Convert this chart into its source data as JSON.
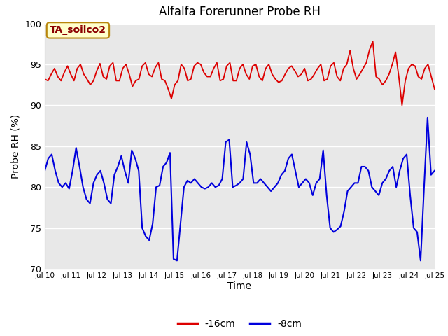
{
  "title": "Alfalfa Forerunner Probe RH",
  "ylabel": "Probe RH (%)",
  "xlabel": "Time",
  "annotation_text": "TA_soilco2",
  "ylim": [
    70,
    100
  ],
  "bg_color": "#e8e8e8",
  "fig_color": "#ffffff",
  "red_color": "#dd0000",
  "blue_color": "#0000dd",
  "legend_labels": [
    "-16cm",
    "-8cm"
  ],
  "xtick_labels": [
    "Jul 10",
    "Jul 11",
    "Jul 12",
    "Jul 13",
    "Jul 14",
    "Jul 15",
    "Jul 16",
    "Jul 17",
    "Jul 18",
    "Jul 19",
    "Jul 20",
    "Jul 21",
    "Jul 22",
    "Jul 23",
    "Jul 24",
    "Jul 25"
  ],
  "ytick_labels": [
    70,
    75,
    80,
    85,
    90,
    95,
    100
  ],
  "red_data": [
    93.2,
    93.0,
    93.8,
    94.5,
    93.5,
    93.0,
    94.0,
    94.8,
    93.8,
    93.0,
    94.5,
    95.0,
    93.8,
    93.2,
    92.5,
    93.0,
    94.2,
    95.1,
    93.5,
    93.2,
    94.8,
    95.2,
    93.0,
    93.0,
    94.5,
    95.0,
    93.8,
    92.3,
    93.0,
    93.2,
    94.8,
    95.2,
    93.8,
    93.5,
    94.6,
    95.2,
    93.2,
    93.0,
    92.0,
    90.8,
    92.5,
    93.0,
    95.0,
    94.5,
    93.0,
    93.2,
    94.8,
    95.2,
    95.0,
    94.0,
    93.5,
    93.5,
    94.5,
    95.2,
    93.0,
    93.2,
    94.8,
    95.2,
    93.0,
    93.0,
    94.5,
    95.0,
    93.8,
    93.2,
    94.8,
    95.0,
    93.5,
    93.0,
    94.5,
    95.0,
    93.8,
    93.2,
    92.8,
    93.0,
    93.8,
    94.5,
    94.8,
    94.2,
    93.5,
    93.8,
    94.5,
    93.0,
    93.2,
    93.8,
    94.5,
    95.0,
    93.0,
    93.2,
    94.8,
    95.2,
    93.5,
    93.0,
    94.5,
    95.0,
    96.7,
    94.5,
    93.2,
    93.8,
    94.5,
    95.2,
    96.8,
    97.8,
    93.5,
    93.2,
    92.5,
    93.0,
    93.8,
    95.0,
    96.5,
    93.5,
    90.0,
    93.0,
    94.5,
    95.0,
    94.8,
    93.5,
    93.2,
    94.5,
    95.0,
    93.5,
    92.0
  ],
  "blue_data": [
    82.0,
    83.5,
    84.0,
    82.0,
    80.5,
    80.0,
    80.5,
    79.8,
    82.0,
    84.8,
    82.5,
    80.0,
    78.5,
    78.0,
    80.5,
    81.5,
    82.0,
    80.5,
    78.5,
    78.0,
    81.5,
    82.5,
    83.8,
    82.0,
    80.5,
    84.5,
    83.5,
    82.0,
    75.0,
    74.0,
    73.5,
    75.5,
    80.0,
    80.2,
    82.5,
    83.0,
    84.2,
    71.2,
    71.0,
    75.5,
    80.0,
    80.8,
    80.5,
    81.0,
    80.5,
    80.0,
    79.8,
    80.0,
    80.5,
    80.0,
    80.2,
    81.0,
    85.5,
    85.8,
    80.0,
    80.2,
    80.5,
    81.0,
    85.5,
    84.0,
    80.5,
    80.5,
    81.0,
    80.5,
    80.0,
    79.5,
    80.0,
    80.5,
    81.5,
    82.0,
    83.5,
    84.0,
    82.0,
    80.0,
    80.5,
    81.0,
    80.5,
    79.0,
    80.5,
    81.0,
    84.5,
    79.0,
    75.0,
    74.5,
    74.8,
    75.2,
    77.0,
    79.5,
    80.0,
    80.5,
    80.5,
    82.5,
    82.5,
    82.0,
    80.0,
    79.5,
    79.0,
    80.5,
    81.0,
    82.0,
    82.5,
    80.0,
    82.0,
    83.5,
    84.0,
    79.0,
    75.0,
    74.5,
    71.0,
    80.0,
    88.5,
    81.5,
    82.0
  ]
}
